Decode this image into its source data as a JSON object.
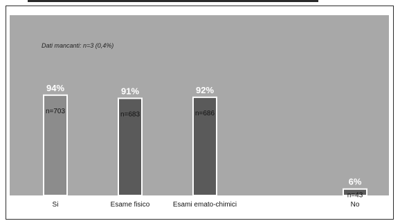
{
  "chart_data": {
    "type": "bar",
    "note": "Dati mancanti: n=3 (0,4%)",
    "categories": [
      "Si",
      "Esame fisico",
      "Esami emato-chimici",
      "No"
    ],
    "values": [
      94,
      91,
      92,
      6
    ],
    "value_labels": [
      "94%",
      "91%",
      "92%",
      "6%"
    ],
    "counts": [
      "n=703",
      "n=683",
      "n=686",
      "n=43"
    ],
    "ylim": [
      0,
      100
    ],
    "colors": {
      "background": "#a8a8a8",
      "bar_si": "#8c8c8c",
      "bar_other": "#5a5a5a",
      "bar_outline": "#ffffff",
      "value_label": "#ffffff"
    }
  }
}
